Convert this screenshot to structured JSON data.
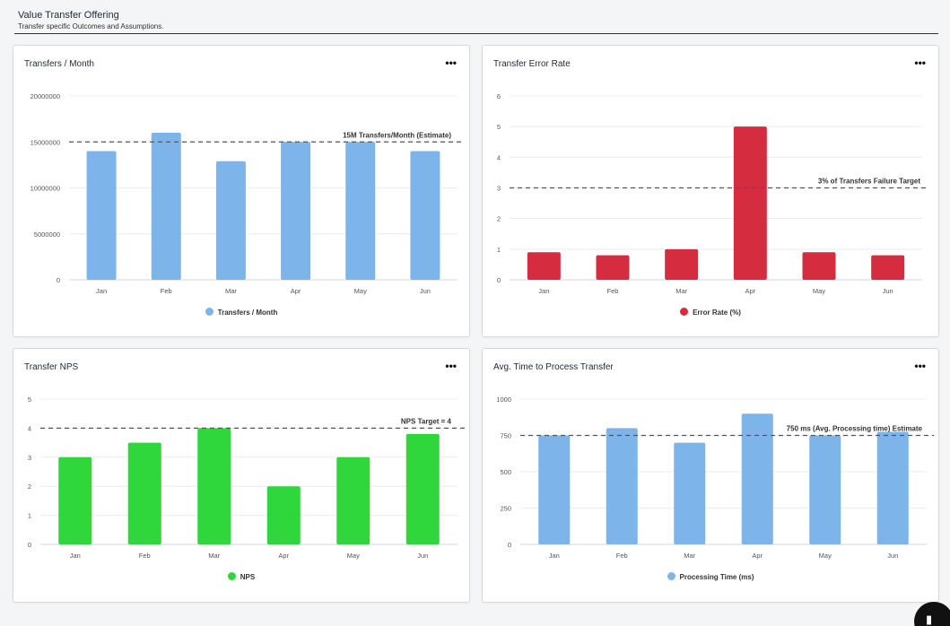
{
  "header": {
    "title": "Value Transfer Offering",
    "subtitle": "Transfer specific Outcomes and Assumptions."
  },
  "more_icon": "•••",
  "fab_icon": "chat-icon",
  "colors": {
    "blue": "#7db4ea",
    "red": "#d62c3f",
    "green": "#2fd63c",
    "grid": "#ececec",
    "axis": "#cfd4ea",
    "text": "#555555"
  },
  "chart_data": [
    {
      "type": "bar",
      "title": "Transfers / Month",
      "categories": [
        "Jan",
        "Feb",
        "Mar",
        "Apr",
        "May",
        "Jun"
      ],
      "series": [
        {
          "name": "Transfers / Month",
          "values": [
            14000000,
            16000000,
            12900000,
            15000000,
            15000000,
            14000000
          ],
          "color": "#7db4ea"
        }
      ],
      "yticks": [
        0,
        5000000,
        10000000,
        15000000,
        20000000
      ],
      "ylim": [
        0,
        20000000
      ],
      "reference_line": {
        "value": 15000000,
        "label": "15M Transfers/Month (Estimate)"
      },
      "grid": true,
      "legend_position": "bottom"
    },
    {
      "type": "bar",
      "title": "Transfer Error Rate",
      "categories": [
        "Jan",
        "Feb",
        "Mar",
        "Apr",
        "May",
        "Jun"
      ],
      "series": [
        {
          "name": "Error Rate (%)",
          "values": [
            0.9,
            0.8,
            1.0,
            5.0,
            0.9,
            0.8
          ],
          "color": "#d62c3f"
        }
      ],
      "yticks": [
        0,
        1,
        2,
        3,
        4,
        5,
        6
      ],
      "ylim": [
        0,
        6
      ],
      "reference_line": {
        "value": 3,
        "label": "3% of Transfers Failure Target"
      },
      "grid": true,
      "legend_position": "bottom"
    },
    {
      "type": "bar",
      "title": "Transfer NPS",
      "categories": [
        "Jan",
        "Feb",
        "Mar",
        "Apr",
        "May",
        "Jun"
      ],
      "series": [
        {
          "name": "NPS",
          "values": [
            3.0,
            3.5,
            4.0,
            2.0,
            3.0,
            3.8
          ],
          "color": "#2fd63c"
        }
      ],
      "yticks": [
        0,
        1,
        2,
        3,
        4,
        5
      ],
      "ylim": [
        0,
        5
      ],
      "reference_line": {
        "value": 4,
        "label": "NPS Target = 4"
      },
      "grid": true,
      "legend_position": "bottom"
    },
    {
      "type": "bar",
      "title": "Avg. Time to Process Transfer",
      "categories": [
        "Jan",
        "Feb",
        "Mar",
        "Apr",
        "May",
        "Jun"
      ],
      "series": [
        {
          "name": "Processing Time (ms)",
          "values": [
            750,
            800,
            700,
            900,
            750,
            775
          ],
          "color": "#7db4ea"
        }
      ],
      "yticks": [
        0,
        250,
        500,
        750,
        1000
      ],
      "ylim": [
        0,
        1000
      ],
      "reference_line": {
        "value": 750,
        "label": "750 ms (Avg. Processing time) Estimate"
      },
      "grid": true,
      "legend_position": "bottom"
    }
  ]
}
